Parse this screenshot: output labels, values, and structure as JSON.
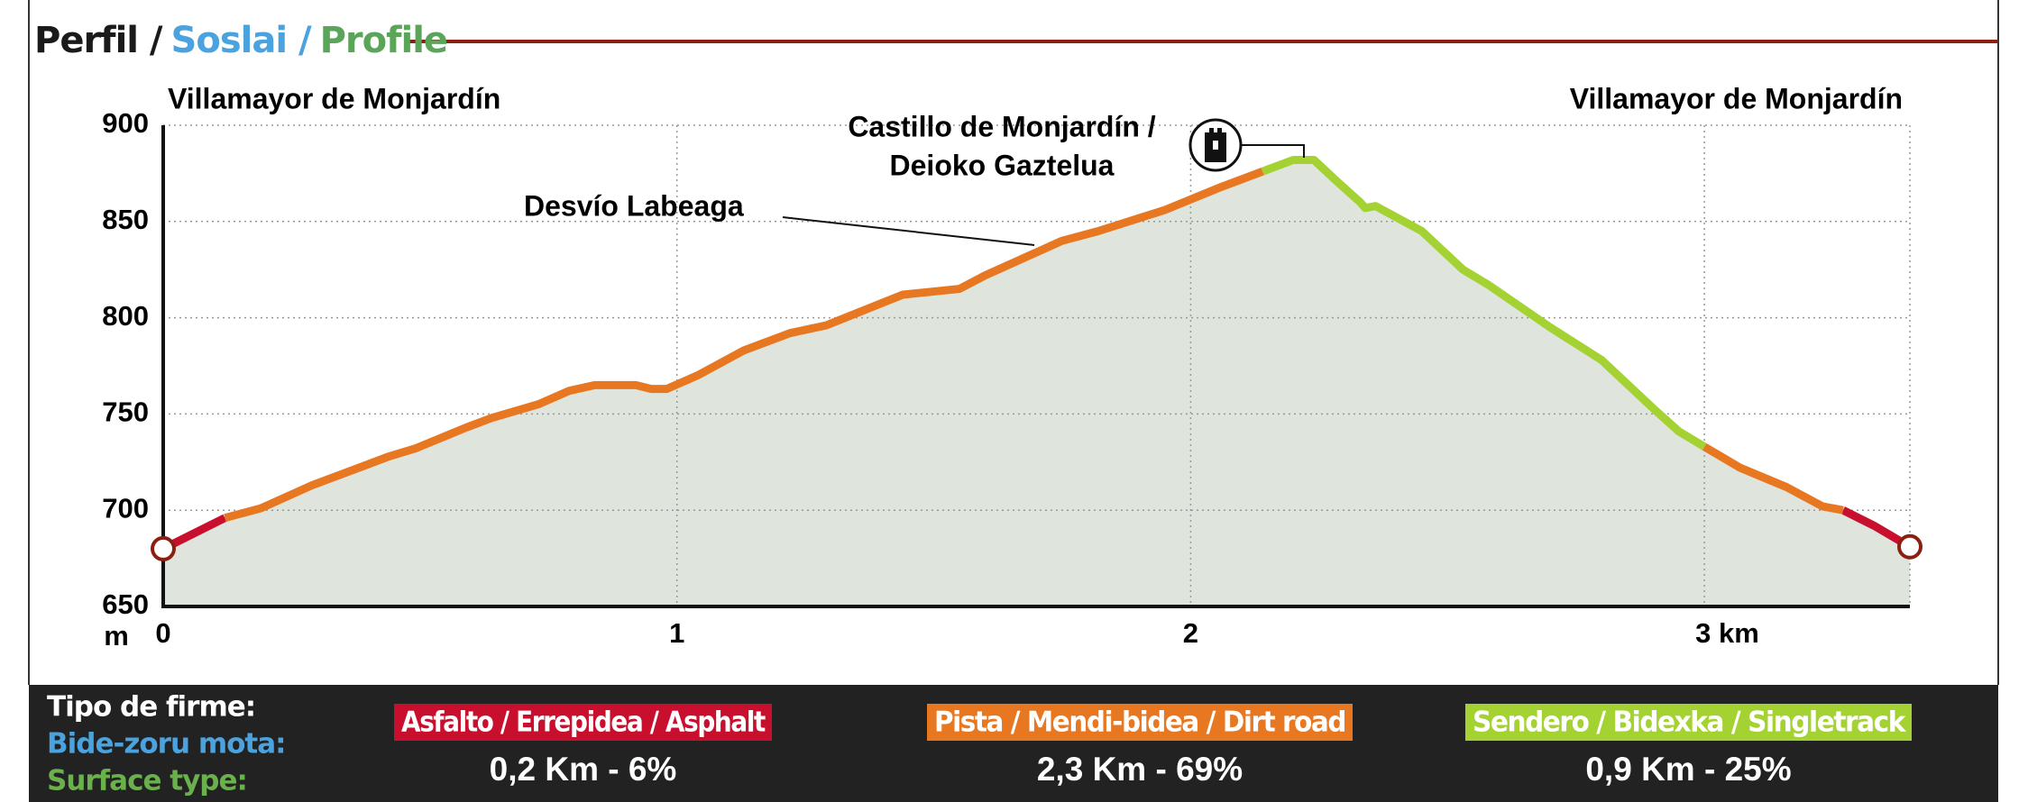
{
  "chart_data": {
    "type": "line",
    "title": [
      "Perfil /",
      "Soslai /",
      "Profile"
    ],
    "title_colors": [
      "#1a1a1a",
      "#4aa3df",
      "#5aa55a"
    ],
    "y_label": "m",
    "annotations": [
      "Villamayor de Monjardín",
      "Villamayor de Monjardín",
      "Desvío Labeaga",
      "Castillo de Monjardín /",
      "Deioko Gaztelua"
    ],
    "x": [
      0,
      0.12,
      0.19,
      0.29,
      0.44,
      0.49,
      0.59,
      0.64,
      0.73,
      0.79,
      0.84,
      0.92,
      0.95,
      0.98,
      1.04,
      1.13,
      1.22,
      1.29,
      1.44,
      1.55,
      1.6,
      1.75,
      1.82,
      1.95,
      2.06,
      2.14,
      2.2,
      2.24,
      2.28,
      2.33,
      2.34,
      2.36,
      2.45,
      2.53,
      2.58,
      2.64,
      2.7,
      2.8,
      2.9,
      2.95,
      3.0,
      3.07,
      3.16,
      3.23,
      3.27,
      3.33,
      3.4
    ],
    "series": [
      {
        "name": "Asfalto / Errepidea / Asphalt",
        "summary": "0,2 Km - 6%",
        "color": "#c8102e",
        "values": [
          680,
          696,
          null,
          null,
          null,
          null,
          null,
          null,
          null,
          null,
          null,
          null,
          null,
          null,
          null,
          null,
          null,
          null,
          null,
          null,
          null,
          null,
          null,
          null,
          null,
          null,
          null,
          null,
          null,
          null,
          null,
          null,
          null,
          null,
          null,
          null,
          null,
          null,
          null,
          null,
          null,
          null,
          null,
          null,
          700,
          692,
          681
        ]
      },
      {
        "name": "Pista / Mendi-bidea / Dirt road",
        "summary": "2,3 Km - 69%",
        "color": "#e87722",
        "values": [
          null,
          696,
          701,
          713,
          728,
          732,
          743,
          748,
          755,
          762,
          765,
          765,
          763,
          763,
          770,
          783,
          792,
          796,
          812,
          815,
          822,
          840,
          845,
          856,
          868,
          876,
          null,
          null,
          null,
          null,
          null,
          null,
          null,
          null,
          null,
          null,
          null,
          null,
          null,
          null,
          733,
          722,
          712,
          702,
          700,
          null,
          null
        ]
      },
      {
        "name": "Sendero / Bidexka / Singletrack",
        "summary": "0,9 Km - 25%",
        "color": "#a4d233",
        "values": [
          null,
          null,
          null,
          null,
          null,
          null,
          null,
          null,
          null,
          null,
          null,
          null,
          null,
          null,
          null,
          null,
          null,
          null,
          null,
          null,
          null,
          null,
          null,
          null,
          null,
          876,
          882,
          882,
          872,
          860,
          857,
          858,
          845,
          825,
          817,
          806,
          795,
          778,
          753,
          741,
          733,
          null,
          null,
          null,
          null,
          null,
          null
        ]
      }
    ],
    "xlim": [
      0,
      3.4
    ],
    "xticks": [
      0,
      1,
      2,
      {
        "value": 3,
        "label": "3 km"
      }
    ],
    "ylim": [
      650,
      900
    ],
    "yticks": [
      650,
      700,
      750,
      800,
      850,
      900
    ],
    "grid": true,
    "area_color": "#dfe4dc",
    "legend": {
      "title": [
        "Tipo de firme:",
        "Bide-zoru mota:",
        "Surface type:"
      ],
      "title_colors": [
        "#ffffff",
        "#4aa3df",
        "#6ab04c"
      ]
    }
  }
}
